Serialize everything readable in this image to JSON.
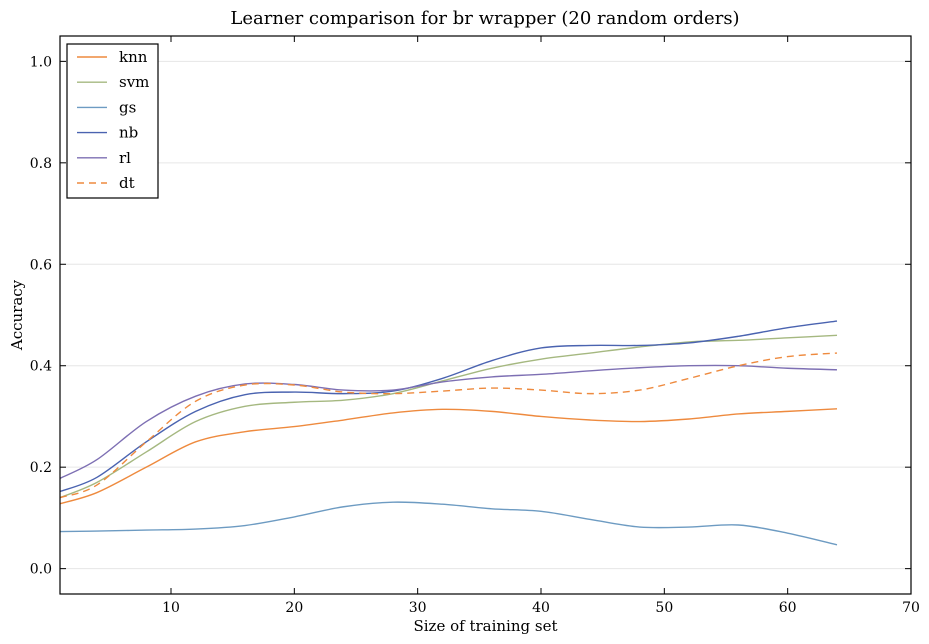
{
  "chart_data": {
    "type": "line",
    "title": "Learner comparison for br wrapper (20 random orders)",
    "xlabel": "Size of training set",
    "ylabel": "Accuracy",
    "xlim": [
      1,
      70
    ],
    "ylim": [
      -0.05,
      1.05
    ],
    "xticks": [
      10,
      20,
      30,
      40,
      50,
      60,
      70
    ],
    "yticks": [
      0.0,
      0.2,
      0.4,
      0.6,
      0.8,
      1.0
    ],
    "ytick_labels": [
      "0.0",
      "0.2",
      "0.4",
      "0.6",
      "0.8",
      "1.0"
    ],
    "grid": "horizontal",
    "legend_position": "top-left",
    "series": [
      {
        "name": "knn",
        "color": "#ee8a3e",
        "dash": "solid",
        "x": [
          1,
          4,
          8,
          12,
          16,
          20,
          24,
          28,
          32,
          36,
          40,
          44,
          48,
          52,
          56,
          60,
          64
        ],
        "y": [
          0.128,
          0.15,
          0.2,
          0.25,
          0.27,
          0.28,
          0.293,
          0.307,
          0.314,
          0.31,
          0.3,
          0.293,
          0.29,
          0.295,
          0.305,
          0.31,
          0.315
        ]
      },
      {
        "name": "svm",
        "color": "#a5b880",
        "dash": "solid",
        "x": [
          1,
          4,
          8,
          12,
          16,
          20,
          24,
          28,
          32,
          36,
          40,
          44,
          48,
          52,
          56,
          60,
          64
        ],
        "y": [
          0.14,
          0.17,
          0.23,
          0.29,
          0.32,
          0.328,
          0.332,
          0.345,
          0.37,
          0.395,
          0.413,
          0.425,
          0.437,
          0.447,
          0.45,
          0.455,
          0.46
        ]
      },
      {
        "name": "gs",
        "color": "#6d9bc2",
        "dash": "solid",
        "x": [
          1,
          4,
          8,
          12,
          16,
          20,
          24,
          28,
          32,
          36,
          40,
          44,
          48,
          52,
          56,
          60,
          64
        ],
        "y": [
          0.073,
          0.074,
          0.076,
          0.078,
          0.085,
          0.102,
          0.122,
          0.131,
          0.127,
          0.118,
          0.113,
          0.097,
          0.082,
          0.082,
          0.086,
          0.07,
          0.047
        ]
      },
      {
        "name": "nb",
        "color": "#4a63b0",
        "dash": "solid",
        "x": [
          1,
          4,
          8,
          12,
          16,
          20,
          24,
          28,
          32,
          36,
          40,
          44,
          48,
          52,
          56,
          60,
          64
        ],
        "y": [
          0.152,
          0.18,
          0.25,
          0.31,
          0.343,
          0.348,
          0.345,
          0.35,
          0.375,
          0.41,
          0.435,
          0.44,
          0.44,
          0.445,
          0.458,
          0.475,
          0.488
        ]
      },
      {
        "name": "rl",
        "color": "#7d6fb3",
        "dash": "solid",
        "x": [
          1,
          4,
          8,
          12,
          16,
          20,
          24,
          28,
          32,
          36,
          40,
          44,
          48,
          52,
          56,
          60,
          64
        ],
        "y": [
          0.178,
          0.215,
          0.29,
          0.34,
          0.364,
          0.363,
          0.352,
          0.352,
          0.368,
          0.378,
          0.383,
          0.39,
          0.396,
          0.4,
          0.4,
          0.395,
          0.392
        ]
      },
      {
        "name": "dt",
        "color": "#ee8a3e",
        "dash": "dashed",
        "x": [
          1,
          4,
          8,
          12,
          16,
          20,
          24,
          28,
          32,
          36,
          40,
          44,
          48,
          52,
          56,
          60,
          64
        ],
        "y": [
          0.14,
          0.165,
          0.25,
          0.33,
          0.362,
          0.362,
          0.348,
          0.345,
          0.35,
          0.356,
          0.352,
          0.345,
          0.352,
          0.375,
          0.4,
          0.418,
          0.425
        ]
      }
    ]
  }
}
